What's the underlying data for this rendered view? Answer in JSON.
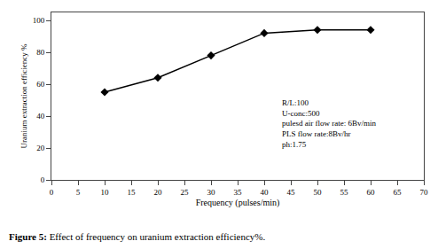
{
  "chart_data": {
    "type": "line",
    "x": [
      10,
      20,
      30,
      40,
      50,
      60
    ],
    "values": [
      55,
      64,
      78,
      92,
      94,
      94
    ],
    "color": "#000000",
    "marker": "diamond",
    "xlabel": "Frequency (pulses/min)",
    "ylabel": "Uranium extraction efficiency %",
    "xlim": [
      0,
      70
    ],
    "ylim": [
      0,
      105
    ],
    "xticks": [
      0,
      5,
      10,
      15,
      20,
      25,
      30,
      35,
      40,
      45,
      50,
      55,
      60,
      65,
      70
    ],
    "yticks": [
      0,
      20,
      40,
      60,
      80,
      100
    ],
    "annotations": [
      {
        "text": "R/L:100\nU-conc:500\npulesd air flow rate: 6Bv/min\nPLS flow rate:8Bv/hr\nph:1.75",
        "x": 43,
        "y": 52
      }
    ],
    "caption_bold": "Figure 5:",
    "caption": "Effect of frequency on uranium extraction efficiency%.",
    "grid": false
  }
}
